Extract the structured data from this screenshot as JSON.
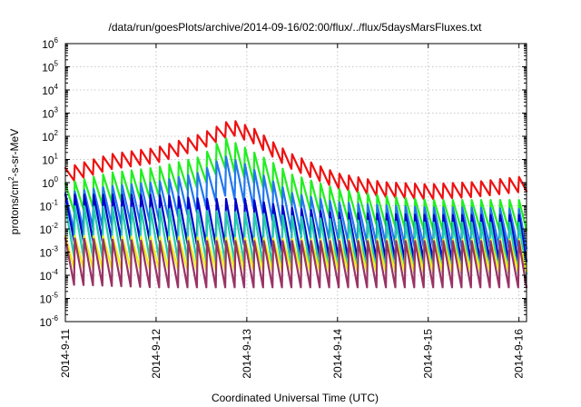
{
  "chart_data": {
    "type": "line",
    "title": "/data/run/goesPlots/archive/2014-09-16/02:00/flux/../flux/5daysMarsFluxes.txt",
    "xlabel": "Coordinated Universal Time (UTC)",
    "ylabel": {
      "before": "protons/cm",
      "sup": "2",
      "after": "-s-sr-MeV"
    },
    "yscale": "log",
    "ylim": [
      1e-06,
      1000000.0
    ],
    "xlim": [
      "2014-09-11 00:00",
      "2014-09-16 02:00"
    ],
    "grid": true,
    "legend": "none",
    "y_ticks": [
      {
        "value": 1e-06,
        "base": "10",
        "exp": "-6"
      },
      {
        "value": 1e-05,
        "base": "10",
        "exp": "-5"
      },
      {
        "value": 0.0001,
        "base": "10",
        "exp": "-4"
      },
      {
        "value": 0.001,
        "base": "10",
        "exp": "-3"
      },
      {
        "value": 0.01,
        "base": "10",
        "exp": "-2"
      },
      {
        "value": 0.1,
        "base": "10",
        "exp": "-1"
      },
      {
        "value": 1,
        "base": "10",
        "exp": "0"
      },
      {
        "value": 10,
        "base": "10",
        "exp": "1"
      },
      {
        "value": 100,
        "base": "10",
        "exp": "2"
      },
      {
        "value": 1000,
        "base": "10",
        "exp": "3"
      },
      {
        "value": 10000,
        "base": "10",
        "exp": "4"
      },
      {
        "value": 100000,
        "base": "10",
        "exp": "5"
      },
      {
        "value": 1000000,
        "base": "10",
        "exp": "6"
      }
    ],
    "x_ticks": [
      {
        "value": "2014-09-11",
        "label": "2014-9-11"
      },
      {
        "value": "2014-09-12",
        "label": "2014-9-12"
      },
      {
        "value": "2014-09-13",
        "label": "2014-9-13"
      },
      {
        "value": "2014-09-14",
        "label": "2014-9-14"
      },
      {
        "value": "2014-09-15",
        "label": "2014-9-15"
      },
      {
        "value": "2014-09-16",
        "label": "2014-9-16"
      }
    ],
    "series": [
      {
        "color": "#ee1111",
        "x": [
          "2014-09-11 00:00",
          "2014-09-11 12:00",
          "2014-09-12 00:00",
          "2014-09-12 12:00",
          "2014-09-12 20:00",
          "2014-09-13 02:00",
          "2014-09-13 08:00",
          "2014-09-13 12:00",
          "2014-09-13 18:00",
          "2014-09-14 00:00",
          "2014-09-14 12:00",
          "2014-09-15 00:00",
          "2014-09-15 12:00",
          "2014-09-16 02:00"
        ],
        "y": [
          2,
          8,
          15,
          60,
          250,
          100,
          20,
          8,
          3,
          1.2,
          0.5,
          0.4,
          0.5,
          0.9
        ],
        "saw": 0.65
      },
      {
        "color": "#22ee22",
        "x": [
          "2014-09-11 00:00",
          "2014-09-11 12:00",
          "2014-09-12 00:00",
          "2014-09-12 12:00",
          "2014-09-12 18:00",
          "2014-09-12 23:00",
          "2014-09-13 06:00",
          "2014-09-13 12:00",
          "2014-09-14 00:00",
          "2014-09-14 12:00",
          "2014-09-15 00:00",
          "2014-09-15 12:00",
          "2014-09-16 02:00"
        ],
        "y": [
          0.2,
          0.6,
          1,
          3,
          20,
          8,
          2,
          0.5,
          0.12,
          0.06,
          0.04,
          0.04,
          0.04
        ],
        "saw": 1.3
      },
      {
        "color": "#2277ee",
        "x": [
          "2014-09-11 00:00",
          "2014-09-11 12:00",
          "2014-09-12 00:00",
          "2014-09-12 12:00",
          "2014-09-12 18:00",
          "2014-09-12 23:00",
          "2014-09-13 06:00",
          "2014-09-13 12:00",
          "2014-09-14 00:00",
          "2014-09-14 12:00",
          "2014-09-15 00:00",
          "2014-09-15 12:00",
          "2014-09-16 02:00"
        ],
        "y": [
          0.05,
          0.1,
          0.15,
          0.4,
          2,
          1,
          0.2,
          0.05,
          0.02,
          0.015,
          0.012,
          0.012,
          0.01
        ],
        "saw": 1.7
      },
      {
        "color": "#0000cc",
        "x": [
          "2014-09-11 00:00",
          "2014-09-12 00:00",
          "2014-09-12 12:00",
          "2014-09-13 00:00",
          "2014-09-13 12:00",
          "2014-09-14 00:00",
          "2014-09-15 00:00",
          "2014-09-16 02:00"
        ],
        "y": [
          0.03,
          0.03,
          0.02,
          0.02,
          0.008,
          0.005,
          0.004,
          0.004
        ],
        "saw": 2.0
      },
      {
        "color": "#22ccaa",
        "x": [
          "2014-09-11 00:00",
          "2014-09-12 00:00",
          "2014-09-13 00:00",
          "2014-09-14 00:00",
          "2014-09-15 00:00",
          "2014-09-16 02:00"
        ],
        "y": [
          0.008,
          0.006,
          0.004,
          0.002,
          0.0015,
          0.0015
        ],
        "saw": 2.2
      },
      {
        "color": "#eeee11",
        "x": [
          "2014-09-11 00:00",
          "2014-09-12 00:00",
          "2014-09-13 00:00",
          "2014-09-14 00:00",
          "2014-09-15 00:00",
          "2014-09-16 02:00"
        ],
        "y": [
          0.001,
          0.0009,
          0.0008,
          0.0007,
          0.0007,
          0.0007
        ],
        "saw": 1.4
      },
      {
        "color": "#993366",
        "x": [
          "2014-09-11 00:00",
          "2014-09-12 00:00",
          "2014-09-13 00:00",
          "2014-09-14 00:00",
          "2014-09-15 00:00",
          "2014-09-16 02:00"
        ],
        "y": [
          0.0004,
          0.0003,
          0.0003,
          0.0003,
          0.0003,
          0.0003
        ],
        "saw": 2.0
      }
    ]
  }
}
